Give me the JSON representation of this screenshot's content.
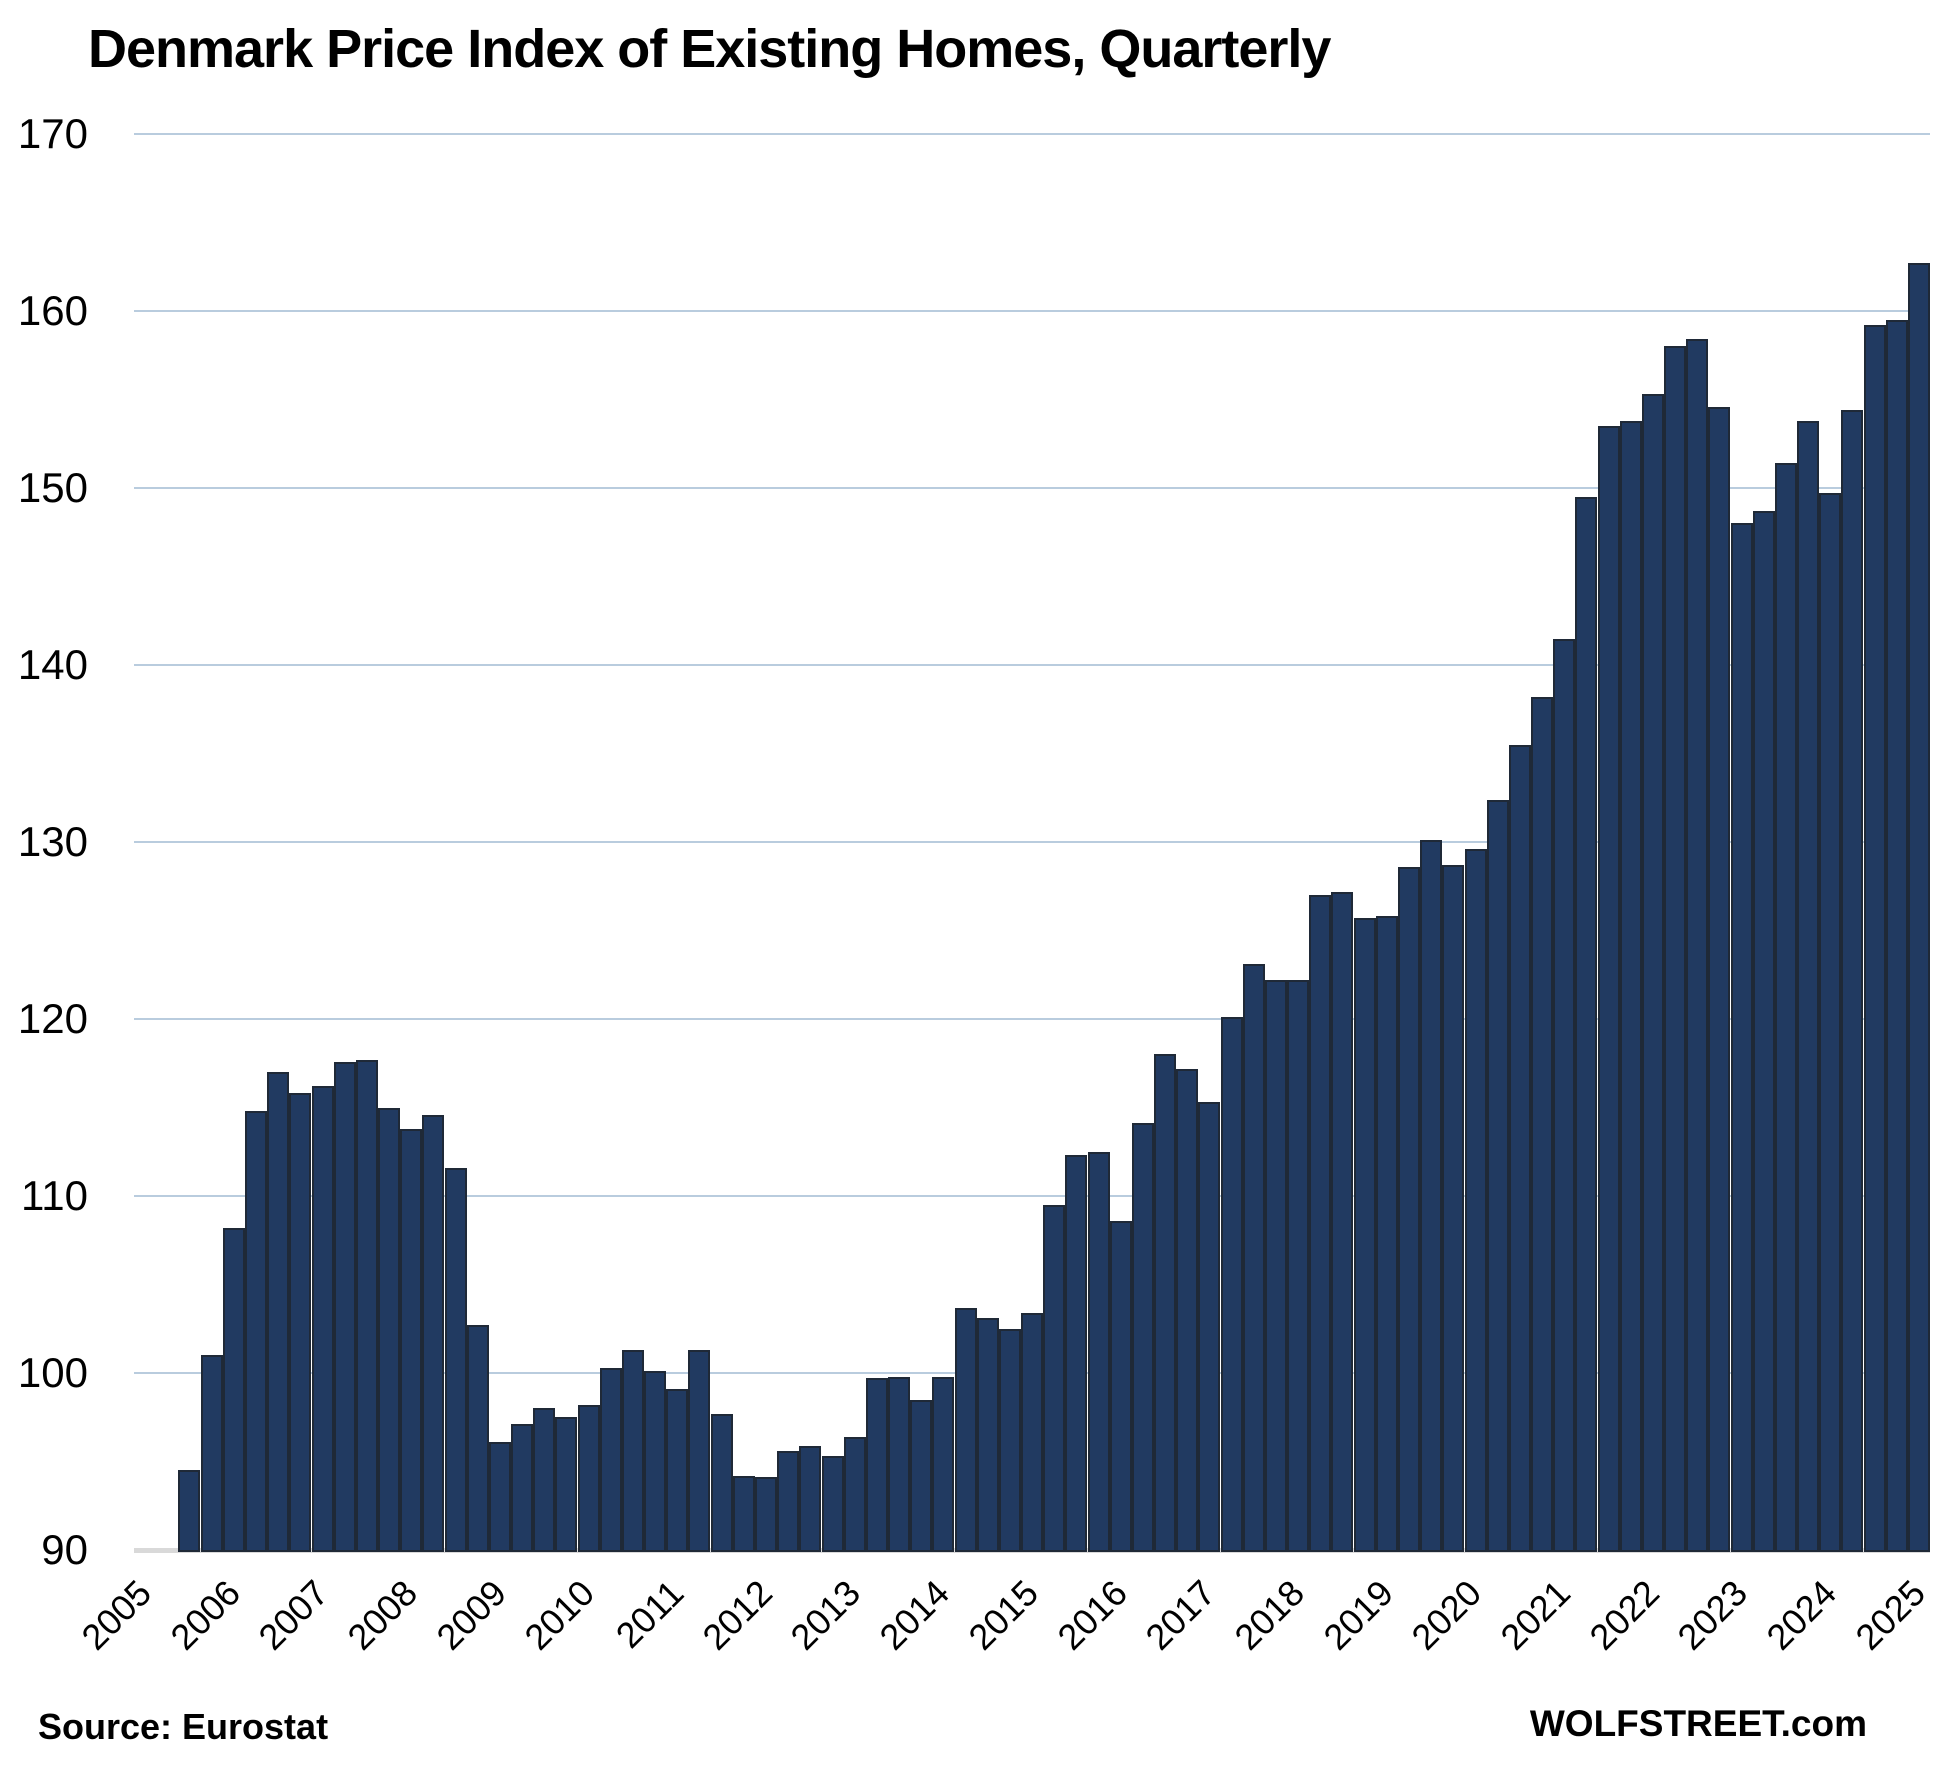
{
  "title": "Denmark Price Index of Existing Homes, Quarterly",
  "footer": {
    "source": "Source: Eurostat",
    "watermark": "WOLFSTREET.com"
  },
  "chart_data": {
    "type": "bar",
    "title": "Denmark Price Index of Existing Homes, Quarterly",
    "xlabel": "",
    "ylabel": "",
    "frequency": "quarterly",
    "x_start": "2005-Q1",
    "x_end": "2025-Q1",
    "ylim": [
      90,
      170
    ],
    "ytick_step": 10,
    "yticks": [
      90,
      100,
      110,
      120,
      130,
      140,
      150,
      160,
      170
    ],
    "grid": "horizontal",
    "legend": "none",
    "xtick_labels": [
      "2005",
      "2006",
      "2007",
      "2008",
      "2009",
      "2010",
      "2011",
      "2012",
      "2013",
      "2014",
      "2015",
      "2016",
      "2017",
      "2018",
      "2019",
      "2020",
      "2021",
      "2022",
      "2023",
      "2024",
      "2025"
    ],
    "values": [
      null,
      null,
      94.5,
      101.0,
      108.2,
      114.8,
      117.0,
      115.8,
      116.2,
      117.6,
      117.7,
      115.0,
      113.8,
      114.6,
      111.6,
      102.7,
      96.1,
      97.1,
      98.0,
      97.5,
      98.2,
      100.3,
      101.3,
      100.1,
      99.1,
      101.3,
      97.7,
      94.2,
      94.1,
      95.6,
      95.9,
      95.3,
      96.4,
      99.7,
      99.8,
      98.5,
      99.8,
      103.7,
      103.1,
      102.5,
      103.4,
      109.5,
      112.3,
      112.5,
      108.6,
      114.1,
      118.0,
      117.2,
      115.3,
      120.1,
      123.1,
      122.2,
      122.2,
      127.0,
      127.2,
      125.7,
      125.8,
      128.6,
      130.1,
      128.7,
      129.6,
      132.4,
      135.5,
      138.2,
      141.5,
      149.5,
      153.5,
      153.8,
      155.3,
      158.0,
      158.4,
      154.6,
      148.0,
      148.7,
      151.4,
      153.8,
      149.7,
      154.4,
      159.2,
      159.5,
      162.7
    ],
    "colors": {
      "bar_fill": "#213A61",
      "bar_border": "#1F2937",
      "gridline": "#B9CCDE",
      "axis_line": "#D9D9D9",
      "text": "#000000",
      "background": "#FFFFFF"
    }
  }
}
